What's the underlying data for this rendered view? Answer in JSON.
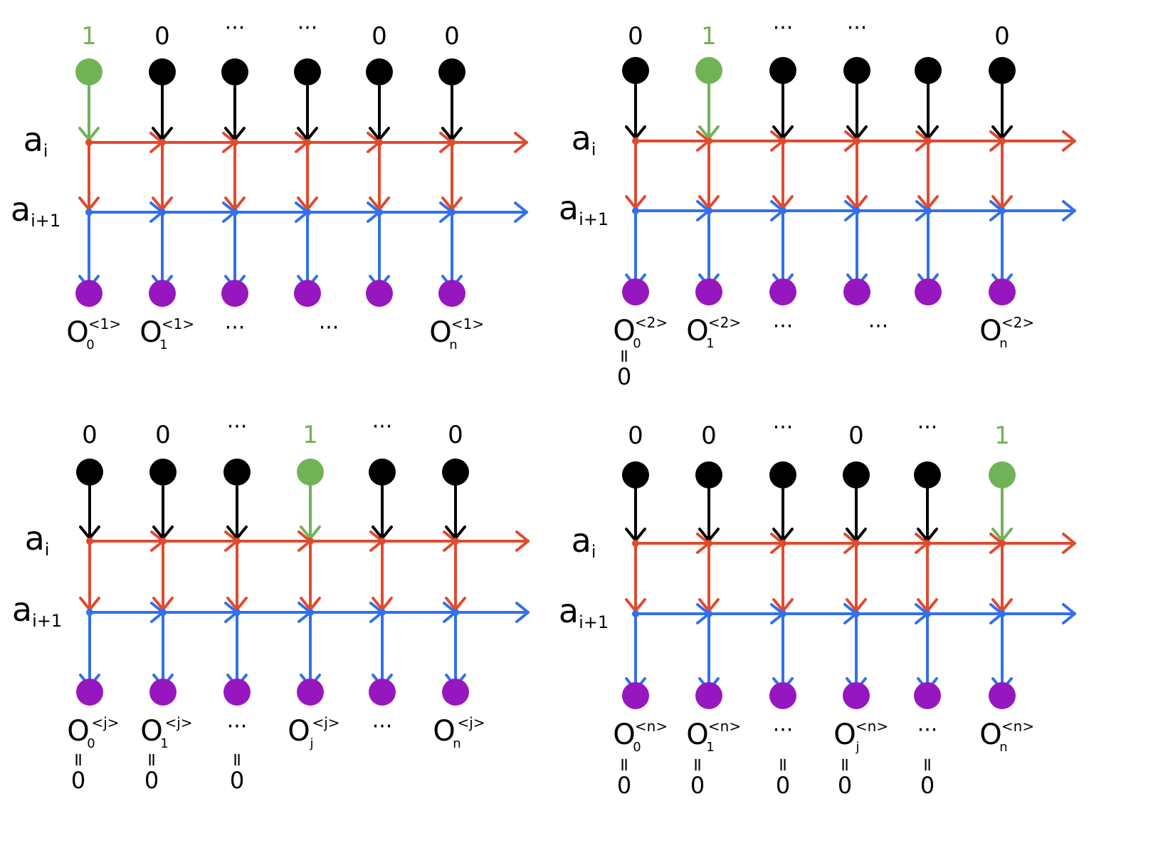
{
  "colors": {
    "black": "#000000",
    "green": "#70b356",
    "red": "#e04a2e",
    "blue": "#3170ee",
    "purple": "#9617c0"
  },
  "row_labels": [
    "a",
    "a"
  ],
  "row_label_subscripts": [
    "i",
    "i+1"
  ],
  "diagrams": [
    {
      "top_labels": [
        "1",
        "0",
        "···",
        "···",
        "0",
        "0"
      ],
      "input_values": [
        "1",
        "0",
        "0",
        "0",
        "0",
        "0"
      ],
      "output_labels": [
        {
          "base": "O",
          "sub": "0",
          "sup": "<1>",
          "eq": ""
        },
        {
          "base": "O",
          "sub": "1",
          "sup": "<1>",
          "eq": ""
        },
        {
          "base": "···",
          "sub": "",
          "sup": "",
          "eq": ""
        },
        {
          "base": "···",
          "sub": "",
          "sup": "",
          "eq": ""
        },
        {
          "base": "O",
          "sub": "n",
          "sup": "<1>",
          "eq": ""
        }
      ]
    },
    {
      "top_labels": [
        "0",
        "1",
        "···",
        "···",
        "",
        "0"
      ],
      "input_values": [
        "0",
        "1",
        "0",
        "0",
        "0",
        "0"
      ],
      "output_labels": [
        {
          "base": "O",
          "sub": "0",
          "sup": "<2>",
          "eq": "0"
        },
        {
          "base": "O",
          "sub": "1",
          "sup": "<2>",
          "eq": ""
        },
        {
          "base": "···",
          "sub": "",
          "sup": "",
          "eq": ""
        },
        {
          "base": "···",
          "sub": "",
          "sup": "",
          "eq": ""
        },
        {
          "base": "O",
          "sub": "n",
          "sup": "<2>",
          "eq": ""
        }
      ]
    },
    {
      "top_labels": [
        "0",
        "0",
        "···",
        "1",
        "···",
        "0"
      ],
      "input_values": [
        "0",
        "0",
        "0",
        "1",
        "0",
        "0"
      ],
      "output_labels": [
        {
          "base": "O",
          "sub": "0",
          "sup": "<j>",
          "eq": "0"
        },
        {
          "base": "O",
          "sub": "1",
          "sup": "<j>",
          "eq": "0"
        },
        {
          "base": "···",
          "sub": "",
          "sup": "",
          "eq": "0"
        },
        {
          "base": "O",
          "sub": "j",
          "sup": "<j>",
          "eq": ""
        },
        {
          "base": "···",
          "sub": "",
          "sup": "",
          "eq": ""
        },
        {
          "base": "O",
          "sub": "n",
          "sup": "<j>",
          "eq": ""
        }
      ]
    },
    {
      "top_labels": [
        "0",
        "0",
        "···",
        "0",
        "···",
        "1"
      ],
      "input_values": [
        "0",
        "0",
        "0",
        "0",
        "0",
        "1"
      ],
      "output_labels": [
        {
          "base": "O",
          "sub": "0",
          "sup": "<n>",
          "eq": "0"
        },
        {
          "base": "O",
          "sub": "1",
          "sup": "<n>",
          "eq": "0"
        },
        {
          "base": "···",
          "sub": "",
          "sup": "",
          "eq": "0"
        },
        {
          "base": "O",
          "sub": "j",
          "sup": "<n>",
          "eq": "0"
        },
        {
          "base": "···",
          "sub": "",
          "sup": "",
          "eq": "0"
        },
        {
          "base": "O",
          "sub": "n",
          "sup": "<n>",
          "eq": ""
        }
      ]
    }
  ]
}
